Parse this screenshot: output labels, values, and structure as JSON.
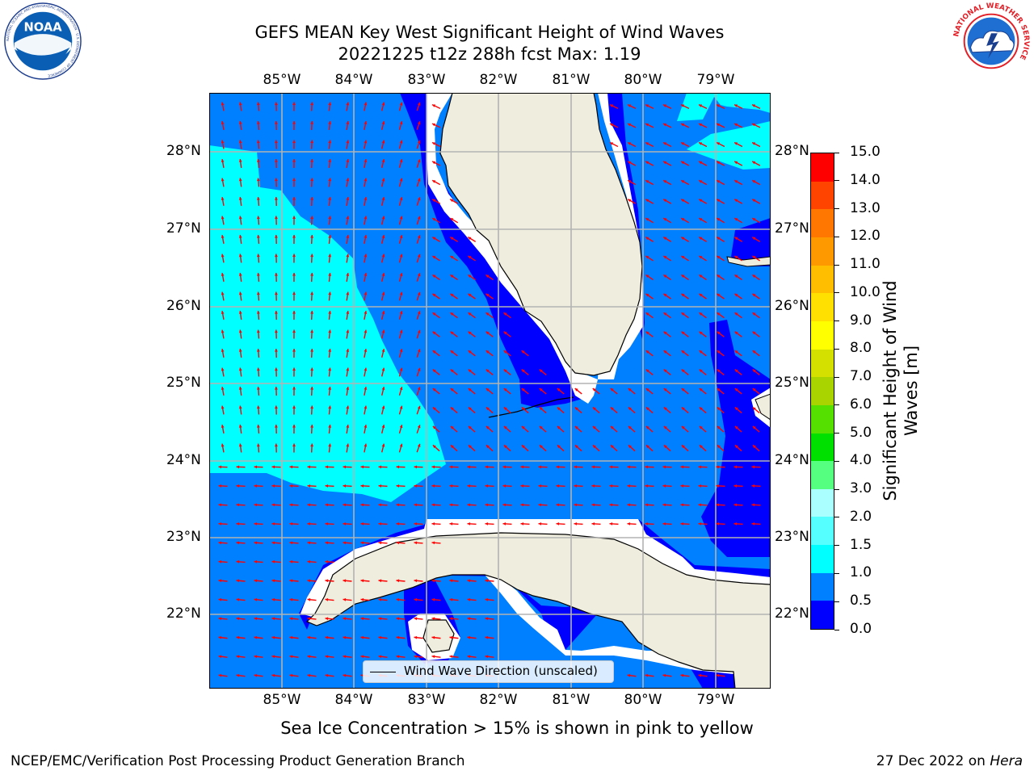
{
  "header": {
    "title_line1": "GEFS MEAN Key West Significant Height of Wind Waves",
    "title_line2": "20221225 t12z 288h fcst   Max: 1.19"
  },
  "logos": {
    "left": "NOAA",
    "left_ring_text": "NATIONAL OCEANIC AND ATMOSPHERIC ADMINISTRATION · U.S. DEPARTMENT OF COMMERCE",
    "right_ring_text": "NATIONAL WEATHER SERVICE"
  },
  "map": {
    "lon_labels": [
      "85°W",
      "84°W",
      "83°W",
      "82°W",
      "81°W",
      "80°W",
      "79°W"
    ],
    "lat_labels": [
      "28°N",
      "27°N",
      "26°N",
      "25°N",
      "24°N",
      "23°N",
      "22°N"
    ],
    "legend_label": "Wind Wave Direction (unscaled)",
    "colors": {
      "land": "#efedde",
      "coast": "#000000",
      "grid": "#b3b3b3",
      "arrow": "#ff0000",
      "band_0_0.5": "#0000ff",
      "band_0.5_1": "#0080ff",
      "band_1_1.5": "#00ffff"
    }
  },
  "colorbar": {
    "title_line1": "Significant Height of Wind",
    "title_line2": "Waves [m]",
    "ticks": [
      "0.0",
      "0.5",
      "1.0",
      "1.5",
      "2.0",
      "3.0",
      "4.0",
      "5.0",
      "6.0",
      "7.0",
      "8.0",
      "9.0",
      "10.0",
      "11.0",
      "12.0",
      "13.0",
      "14.0",
      "15.0"
    ],
    "colors": [
      "#0000ff",
      "#0080ff",
      "#00ffff",
      "#55ffff",
      "#aaffff",
      "#55ff80",
      "#00e000",
      "#55e000",
      "#aad400",
      "#d4e000",
      "#ffff00",
      "#ffe000",
      "#ffbf00",
      "#ff9900",
      "#ff7700",
      "#ff4400",
      "#ff0000"
    ]
  },
  "subtitle": "Sea Ice Concentration > 15% is shown in pink to yellow",
  "footer": {
    "left": "NCEP/EMC/Verification Post Processing Product Generation Branch",
    "right_date": "27 Dec 2022 on",
    "right_machine": "Hera"
  }
}
